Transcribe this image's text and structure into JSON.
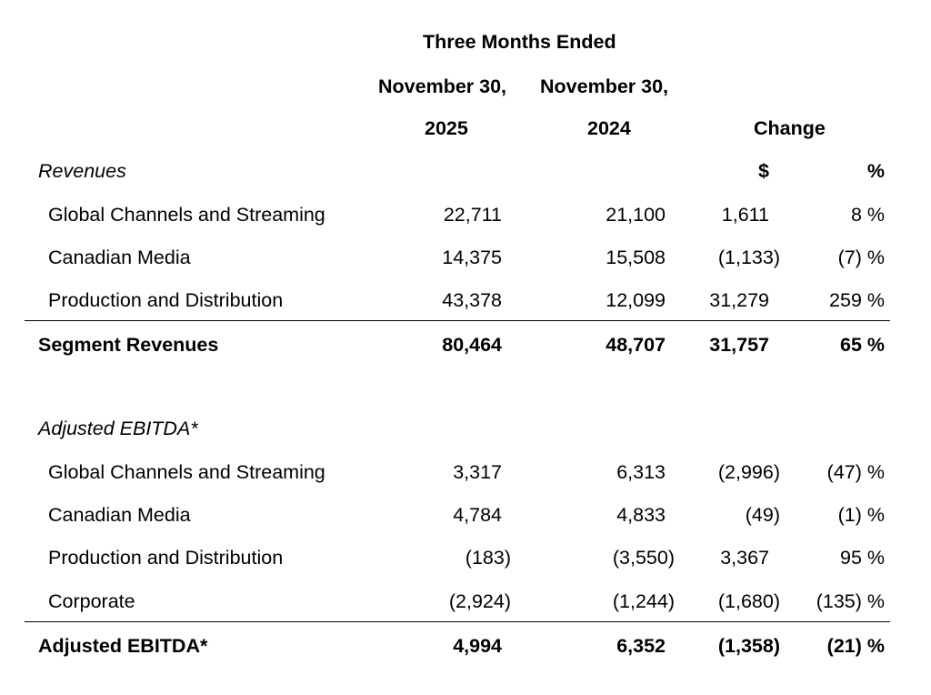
{
  "header": {
    "period": "Three Months Ended",
    "col1_date": "November 30,",
    "col2_date": "November 30,",
    "col1_year": "2025",
    "col2_year": "2024",
    "change": "Change",
    "dollar": "$",
    "percent": "%"
  },
  "revenues": {
    "label": "Revenues",
    "rows": [
      {
        "label": "Global Channels and Streaming",
        "y2025": "22,711",
        "y2024": "21,100",
        "change": "1,611",
        "pct": "8 %"
      },
      {
        "label": "Canadian Media",
        "y2025": "14,375",
        "y2024": "15,508",
        "change": "(1,133)",
        "pct": "(7) %"
      },
      {
        "label": "Production and Distribution",
        "y2025": "43,378",
        "y2024": "12,099",
        "change": "31,279",
        "pct": "259 %"
      }
    ],
    "total": {
      "label": "Segment Revenues",
      "y2025": "80,464",
      "y2024": "48,707",
      "change": "31,757",
      "pct": "65 %"
    }
  },
  "ebitda": {
    "label": "Adjusted EBITDA*",
    "rows": [
      {
        "label": "Global Channels and Streaming",
        "y2025": "3,317",
        "y2024": "6,313",
        "change": "(2,996)",
        "pct": "(47) %"
      },
      {
        "label": "Canadian Media",
        "y2025": "4,784",
        "y2024": "4,833",
        "change": "(49)",
        "pct": "(1) %"
      },
      {
        "label": "Production and Distribution",
        "y2025": "(183)",
        "y2024": "(3,550)",
        "change": "3,367",
        "pct": "95 %"
      },
      {
        "label": "Corporate",
        "y2025": "(2,924)",
        "y2024": "(1,244)",
        "change": "(1,680)",
        "pct": "(135) %"
      }
    ],
    "total": {
      "label": "Adjusted EBITDA*",
      "y2025": "4,994",
      "y2024": "6,352",
      "change": "(1,358)",
      "pct": "(21) %"
    }
  }
}
